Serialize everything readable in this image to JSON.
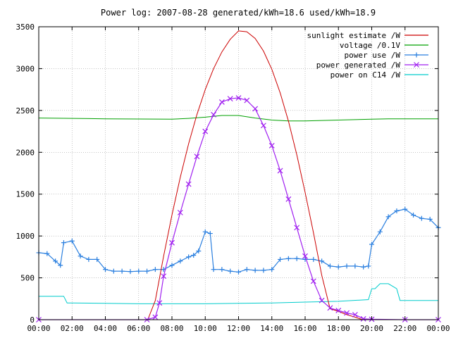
{
  "chart_data": {
    "type": "line",
    "title": "Power log: 2007-08-28 generated/kWh=18.6 used/kWh=18.9",
    "xlabel": "",
    "ylabel": "",
    "xlim": [
      0,
      24
    ],
    "ylim": [
      0,
      3500
    ],
    "grid": true,
    "legend_position": "top-right",
    "x_ticks": [
      0,
      2,
      4,
      6,
      8,
      10,
      12,
      14,
      16,
      18,
      20,
      22,
      24
    ],
    "x_tick_labels": [
      "00:00",
      "02:00",
      "04:00",
      "06:00",
      "08:00",
      "10:00",
      "12:00",
      "14:00",
      "16:00",
      "18:00",
      "20:00",
      "22:00",
      "00:00"
    ],
    "y_ticks": [
      0,
      500,
      1000,
      1500,
      2000,
      2500,
      3000,
      3500
    ],
    "y_tick_labels": [
      "0",
      "500",
      "1000",
      "1500",
      "2000",
      "2500",
      "3000",
      "3500"
    ],
    "series": [
      {
        "name": "sunlight estimate /W",
        "color": "#cc0000",
        "marker": "none",
        "x": [
          6.55,
          7,
          7.5,
          8,
          8.5,
          9,
          9.5,
          10,
          10.5,
          11,
          11.5,
          12,
          12.5,
          13,
          13.5,
          14,
          14.5,
          15,
          15.5,
          16,
          16.5,
          17,
          17.5,
          18,
          18.5,
          19,
          19.45
        ],
        "y": [
          0,
          230,
          760,
          1250,
          1700,
          2100,
          2450,
          2750,
          3000,
          3200,
          3350,
          3450,
          3440,
          3360,
          3210,
          2990,
          2710,
          2370,
          1970,
          1520,
          1040,
          530,
          130,
          100,
          60,
          30,
          0
        ]
      },
      {
        "name": "voltage /0.1V",
        "color": "#00a000",
        "marker": "none",
        "x": [
          0,
          2,
          4,
          6,
          8,
          9,
          10,
          11,
          12,
          13,
          14,
          15,
          16,
          17,
          18,
          19,
          20,
          21,
          22,
          23,
          24
        ],
        "y": [
          2410,
          2405,
          2400,
          2398,
          2395,
          2405,
          2420,
          2440,
          2440,
          2410,
          2385,
          2375,
          2375,
          2380,
          2385,
          2390,
          2395,
          2400,
          2400,
          2400,
          2400
        ]
      },
      {
        "name": "power use /W",
        "color": "#2a7fdf",
        "marker": "plus",
        "x": [
          0,
          0.5,
          1,
          1.3,
          1.5,
          2,
          2.5,
          3,
          3.5,
          4,
          4.5,
          5,
          5.5,
          6,
          6.5,
          7,
          7.5,
          8,
          8.5,
          9,
          9.3,
          9.6,
          10,
          10.3,
          10.5,
          11,
          11.5,
          12,
          12.5,
          13,
          13.5,
          14,
          14.5,
          15,
          15.5,
          16,
          16.5,
          17,
          17.5,
          18,
          18.5,
          19,
          19.5,
          19.8,
          20,
          20.5,
          21,
          21.5,
          22,
          22.5,
          23,
          23.5,
          24
        ],
        "y": [
          800,
          790,
          700,
          650,
          920,
          940,
          760,
          720,
          720,
          600,
          580,
          580,
          575,
          580,
          580,
          600,
          600,
          650,
          700,
          750,
          770,
          820,
          1050,
          1030,
          600,
          600,
          580,
          570,
          600,
          590,
          590,
          600,
          720,
          730,
          730,
          720,
          720,
          700,
          640,
          630,
          640,
          640,
          630,
          640,
          900,
          1050,
          1230,
          1300,
          1320,
          1250,
          1210,
          1200,
          1100
        ]
      },
      {
        "name": "power generated /W",
        "color": "#a020f0",
        "marker": "cross",
        "x": [
          0,
          6.5,
          7,
          7.25,
          7.5,
          8,
          8.5,
          9,
          9.5,
          10,
          10.5,
          11,
          11.5,
          12,
          12.5,
          13,
          13.5,
          14,
          14.5,
          15,
          15.5,
          16,
          16.5,
          17,
          17.5,
          18,
          18.5,
          19,
          19.5,
          20,
          22,
          24
        ],
        "y": [
          0,
          0,
          30,
          200,
          520,
          920,
          1280,
          1620,
          1950,
          2250,
          2450,
          2600,
          2640,
          2650,
          2620,
          2520,
          2320,
          2080,
          1780,
          1440,
          1100,
          760,
          460,
          230,
          140,
          110,
          80,
          60,
          10,
          5,
          0,
          0
        ]
      },
      {
        "name": "power on C14 /W",
        "color": "#00cccc",
        "marker": "none",
        "x": [
          0,
          1.5,
          1.7,
          2,
          4,
          6,
          8,
          10,
          12,
          14,
          16,
          18,
          19.8,
          20,
          20.2,
          20.5,
          21,
          21.5,
          21.7,
          22,
          24
        ],
        "y": [
          280,
          280,
          200,
          200,
          195,
          190,
          190,
          190,
          195,
          200,
          210,
          220,
          240,
          370,
          370,
          430,
          430,
          370,
          230,
          230,
          230
        ]
      }
    ]
  }
}
